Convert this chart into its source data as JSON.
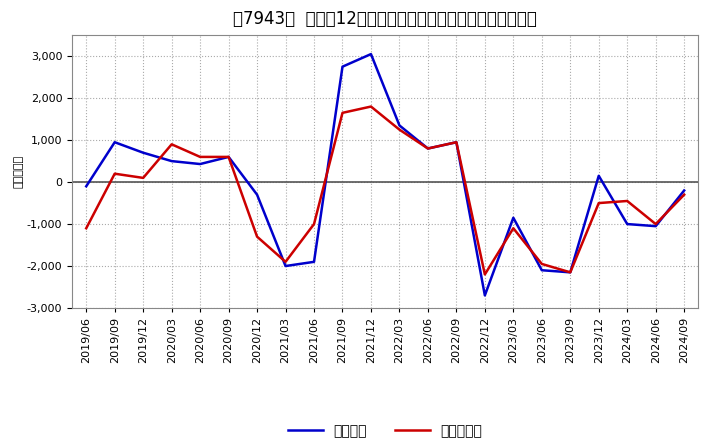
{
  "title": "［7943］  利益の12か月移動合計の対前年同期増減額の推移",
  "ylabel": "（百万円）",
  "x_labels": [
    "2019/06",
    "2019/09",
    "2019/12",
    "2020/03",
    "2020/06",
    "2020/09",
    "2020/12",
    "2021/03",
    "2021/06",
    "2021/09",
    "2021/12",
    "2022/03",
    "2022/06",
    "2022/09",
    "2022/12",
    "2023/03",
    "2023/06",
    "2023/09",
    "2023/12",
    "2024/03",
    "2024/06",
    "2024/09"
  ],
  "keijo_rieki": [
    -100,
    950,
    700,
    500,
    430,
    600,
    -300,
    -2000,
    -1900,
    2750,
    3050,
    1350,
    800,
    950,
    -2700,
    -850,
    -2100,
    -2150,
    150,
    -1000,
    -1050,
    -200
  ],
  "touki_junnrieki": [
    -1100,
    200,
    100,
    900,
    600,
    600,
    -1300,
    -1900,
    -1000,
    1650,
    1800,
    1250,
    800,
    950,
    -2200,
    -1100,
    -1950,
    -2150,
    -500,
    -450,
    -1000,
    -300
  ],
  "line_color_keijo": "#0000cc",
  "line_color_touki": "#cc0000",
  "background_color": "#ffffff",
  "plot_bg_color": "#ffffff",
  "grid_color": "#aaaaaa",
  "zero_line_color": "#555555",
  "ylim": [
    -3000,
    3500
  ],
  "yticks": [
    -3000,
    -2000,
    -1000,
    0,
    1000,
    2000,
    3000
  ],
  "legend_keijo": "経常利益",
  "legend_touki": "当期純利益",
  "title_fontsize": 12,
  "axis_fontsize": 8,
  "legend_fontsize": 10
}
